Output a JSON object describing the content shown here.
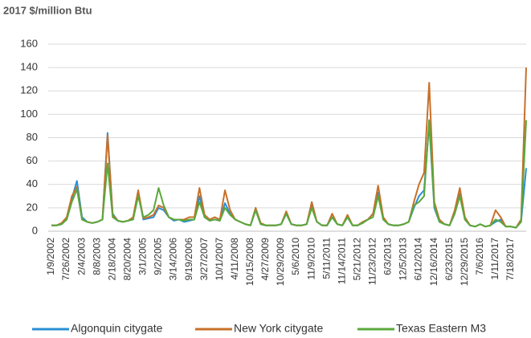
{
  "chart_data": {
    "type": "line",
    "title": "2017 $/million Btu",
    "categories": [
      "1/9/2002",
      null,
      null,
      "7/26/2002",
      null,
      null,
      "2/4/2003",
      null,
      null,
      "8/8/2003",
      null,
      null,
      "2/18/2004",
      null,
      null,
      "8/20/2004",
      null,
      null,
      "3/1/2005",
      null,
      null,
      "9/2/2005",
      null,
      null,
      "3/14/2006",
      null,
      null,
      "9/19/2006",
      null,
      null,
      "3/27/2007",
      null,
      null,
      "10/1/2007",
      null,
      null,
      "4/11/2008",
      null,
      null,
      "10/15/2008",
      null,
      null,
      "4/27/2009",
      null,
      null,
      "10/29/2009",
      null,
      null,
      "5/6/2010",
      null,
      null,
      "11/9/2010",
      null,
      null,
      "5/11/2011",
      null,
      null,
      "11/14/2011",
      null,
      null,
      "5/21/2012",
      null,
      null,
      "11/23/2012",
      null,
      null,
      "6/3/2013",
      null,
      null,
      "12/5/2013",
      null,
      null,
      "6/12/2014",
      null,
      null,
      "12/16/2014",
      null,
      null,
      "6/23/2015",
      null,
      null,
      "12/29/2015",
      null,
      null,
      "7/6/2016",
      null,
      null,
      "1/11/2017",
      null,
      null,
      "7/18/2017",
      null,
      null,
      null
    ],
    "series": [
      {
        "name": "Algonquin citygate",
        "color": "#2a8fd4",
        "values": [
          5,
          5,
          6,
          10,
          28,
          43,
          12,
          8,
          7,
          8,
          10,
          84,
          15,
          9,
          8,
          9,
          10,
          33,
          10,
          11,
          12,
          20,
          18,
          12,
          9,
          10,
          8,
          9,
          10,
          30,
          12,
          9,
          10,
          9,
          24,
          15,
          10,
          8,
          6,
          5,
          18,
          6,
          5,
          5,
          5,
          6,
          15,
          6,
          5,
          5,
          6,
          22,
          8,
          5,
          5,
          12,
          6,
          5,
          12,
          5,
          5,
          8,
          10,
          15,
          33,
          10,
          6,
          5,
          5,
          6,
          8,
          20,
          30,
          35,
          92,
          20,
          8,
          6,
          5,
          15,
          32,
          10,
          5,
          4,
          6,
          4,
          5,
          8,
          10,
          4,
          4,
          3,
          8,
          54
        ]
      },
      {
        "name": "New York citygate",
        "color": "#c8702a",
        "values": [
          5,
          5,
          7,
          12,
          30,
          38,
          10,
          8,
          7,
          8,
          10,
          82,
          14,
          9,
          8,
          9,
          12,
          35,
          11,
          12,
          14,
          22,
          20,
          12,
          10,
          10,
          10,
          12,
          12,
          37,
          14,
          10,
          12,
          10,
          35,
          18,
          10,
          8,
          6,
          5,
          20,
          7,
          5,
          5,
          5,
          6,
          17,
          6,
          5,
          5,
          6,
          25,
          8,
          5,
          5,
          15,
          6,
          5,
          14,
          5,
          5,
          8,
          10,
          15,
          39,
          12,
          6,
          5,
          5,
          6,
          8,
          25,
          40,
          50,
          127,
          25,
          10,
          6,
          5,
          18,
          37,
          12,
          5,
          4,
          6,
          4,
          5,
          18,
          12,
          4,
          4,
          3,
          10,
          140
        ]
      },
      {
        "name": "Texas Eastern M3",
        "color": "#5aa83c",
        "values": [
          5,
          5,
          6,
          10,
          25,
          36,
          10,
          8,
          7,
          8,
          10,
          58,
          12,
          9,
          8,
          9,
          10,
          30,
          12,
          14,
          18,
          37,
          22,
          12,
          10,
          10,
          9,
          10,
          10,
          25,
          12,
          9,
          10,
          9,
          20,
          14,
          10,
          8,
          6,
          5,
          18,
          6,
          5,
          5,
          5,
          6,
          15,
          6,
          5,
          5,
          6,
          20,
          8,
          5,
          5,
          12,
          6,
          5,
          12,
          5,
          5,
          7,
          10,
          12,
          30,
          10,
          6,
          5,
          5,
          6,
          8,
          22,
          25,
          30,
          95,
          22,
          8,
          6,
          5,
          15,
          30,
          10,
          5,
          4,
          6,
          4,
          5,
          10,
          8,
          4,
          4,
          3,
          8,
          95
        ]
      }
    ],
    "ylim": [
      0,
      160
    ],
    "yticks": [
      0,
      20,
      40,
      60,
      80,
      100,
      120,
      140,
      160
    ],
    "grid": true
  }
}
